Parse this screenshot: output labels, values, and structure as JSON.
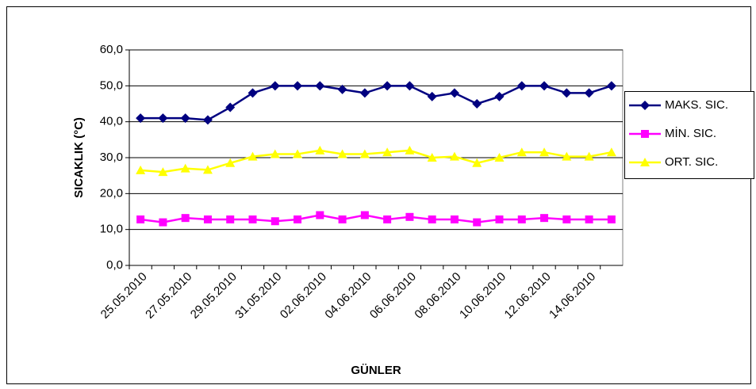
{
  "chart_data": {
    "type": "line",
    "x_label": "GÜNLER",
    "y_label": "SICAKLIK (°C)",
    "categories": [
      "25.05.2010",
      null,
      "27.05.2010",
      null,
      "29.05.2010",
      null,
      "31.05.2010",
      null,
      "02.06.2010",
      null,
      "04.06.2010",
      null,
      "06.06.2010",
      null,
      "08.06.2010",
      null,
      "10.06.2010",
      null,
      "12.06.2010",
      null,
      "14.06.2010",
      null
    ],
    "series": [
      {
        "name": "MAKS. SIC.",
        "color": "#000080",
        "marker": "diamond",
        "values": [
          41,
          41,
          41,
          40.5,
          44,
          48,
          50,
          50,
          50,
          49,
          48,
          50,
          50,
          47,
          48,
          45,
          47,
          50,
          50,
          48,
          48,
          50
        ]
      },
      {
        "name": "MİN. SIC.",
        "color": "#ff00ff",
        "marker": "square",
        "values": [
          12.8,
          12,
          13.2,
          12.8,
          12.8,
          12.8,
          12.3,
          12.8,
          14,
          12.8,
          14,
          12.8,
          13.5,
          12.8,
          12.8,
          12,
          12.8,
          12.8,
          13.2,
          12.8,
          12.8,
          12.8
        ]
      },
      {
        "name": "ORT. SIC.",
        "color": "#ffff00",
        "marker": "triangle",
        "values": [
          26.5,
          26,
          27,
          26.6,
          28.5,
          30.3,
          31,
          31,
          32,
          31,
          31,
          31.5,
          32,
          30,
          30.3,
          28.5,
          30,
          31.5,
          31.5,
          30.3,
          30.3,
          31.5
        ]
      }
    ],
    "ylim": [
      0,
      60
    ],
    "yticks": [
      {
        "value": 0,
        "label": "0,0"
      },
      {
        "value": 10,
        "label": "10,0"
      },
      {
        "value": 20,
        "label": "20,0"
      },
      {
        "value": 30,
        "label": "30,0"
      },
      {
        "value": 40,
        "label": "40,0"
      },
      {
        "value": 50,
        "label": "50,0"
      },
      {
        "value": 60,
        "label": "60,0"
      }
    ],
    "grid": true,
    "legend": "right"
  }
}
